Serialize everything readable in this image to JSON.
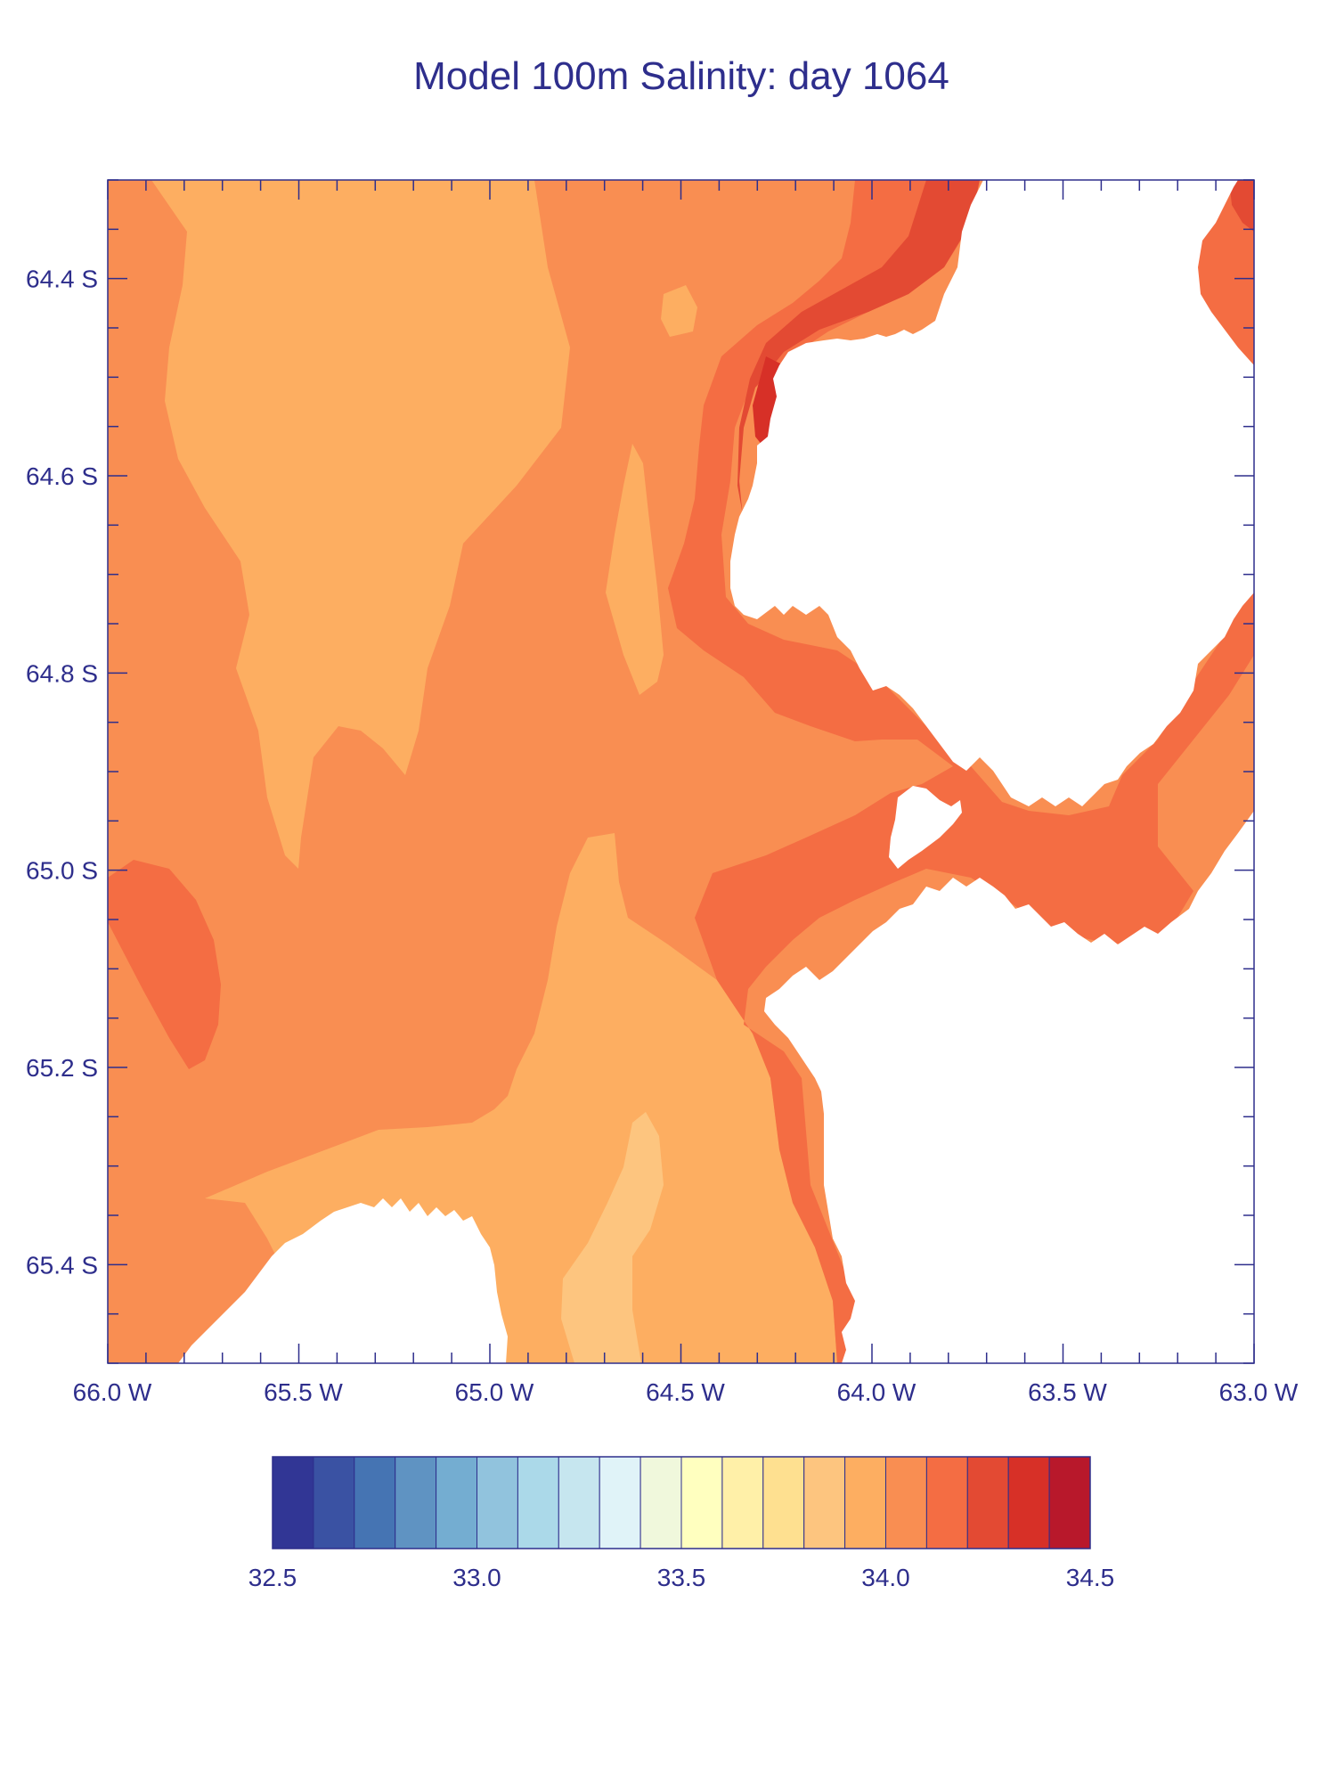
{
  "chart_data": {
    "type": "heatmap",
    "title": "Model 100m Salinity: day 1064",
    "xlabel": "",
    "ylabel": "",
    "x_range": [
      -66.0,
      -63.0
    ],
    "y_range": [
      -65.5,
      -64.3
    ],
    "x_tick_labels": [
      "66.0 W",
      "65.5 W",
      "65.0 W",
      "64.5 W",
      "64.0 W",
      "63.5 W",
      "63.0 W"
    ],
    "x_tick_values": [
      -66.0,
      -65.5,
      -65.0,
      -64.5,
      -64.0,
      -63.5,
      -63.0
    ],
    "y_tick_labels": [
      "64.4 S",
      "64.6 S",
      "64.8 S",
      "65.0 S",
      "65.2 S",
      "65.4 S"
    ],
    "y_tick_values": [
      -64.4,
      -64.6,
      -64.8,
      -65.0,
      -65.2,
      -65.4
    ],
    "colorbar": {
      "min": 32.5,
      "max": 34.5,
      "levels": [
        32.5,
        32.6,
        32.7,
        32.8,
        32.9,
        33.0,
        33.1,
        33.2,
        33.3,
        33.4,
        33.5,
        33.6,
        33.7,
        33.8,
        33.9,
        34.0,
        34.1,
        34.2,
        34.3,
        34.4,
        34.5
      ],
      "colors": [
        "#313695",
        "#3a52a3",
        "#4574b3",
        "#5f93c2",
        "#74add1",
        "#91c3dd",
        "#abd9e9",
        "#c6e6ef",
        "#e0f3f8",
        "#f0f8dc",
        "#ffffbf",
        "#fff0a8",
        "#fee090",
        "#fdc57f",
        "#fdae61",
        "#f98e52",
        "#f46d43",
        "#e34a33",
        "#d73027",
        "#b8182b"
      ],
      "tick_labels": [
        "32.5",
        "33.0",
        "33.5",
        "34.0",
        "34.5"
      ],
      "tick_values": [
        32.5,
        33.0,
        33.5,
        34.0,
        34.5
      ]
    },
    "field": {
      "background_value": 34.05,
      "regions": [
        {
          "name": "western-plume",
          "value": 33.95
        },
        {
          "name": "central-light-patch",
          "value": 33.95
        },
        {
          "name": "northern-islet",
          "value": 33.95
        },
        {
          "name": "southern-plume",
          "value": 33.95
        },
        {
          "name": "southern-core",
          "value": 33.85
        },
        {
          "name": "west-edge-patch",
          "value": 34.15
        },
        {
          "name": "island-rim",
          "value": 34.15
        },
        {
          "name": "island-inner-rim",
          "value": 34.25
        },
        {
          "name": "island-core",
          "value": 34.35
        },
        {
          "name": "coast-rim",
          "value": 34.15
        },
        {
          "name": "coast-inner-rim",
          "value": 34.25
        }
      ],
      "masked": "land"
    }
  }
}
